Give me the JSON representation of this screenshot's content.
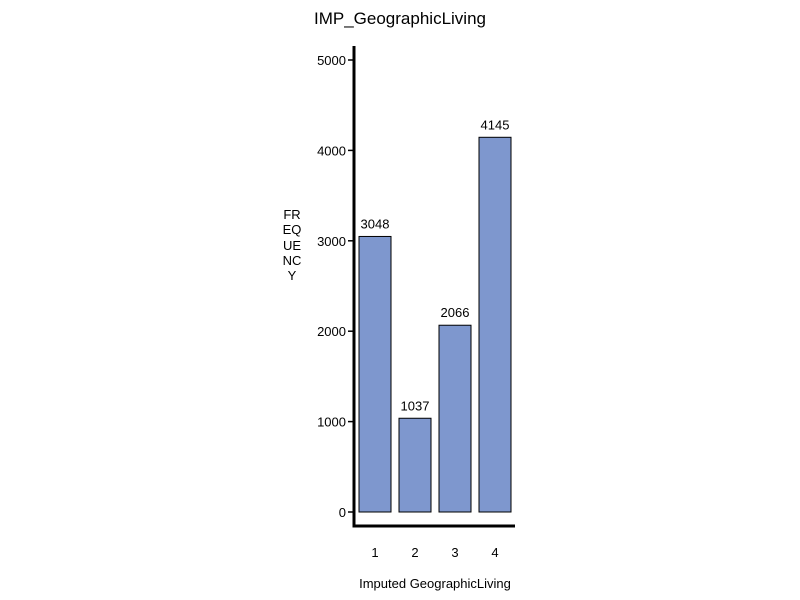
{
  "chart_data": {
    "type": "bar",
    "title": "IMP_GeographicLiving",
    "xlabel": "Imputed GeographicLiving",
    "ylabel": "FREQUENCY",
    "categories": [
      "1",
      "2",
      "3",
      "4"
    ],
    "values": [
      3048,
      1037,
      2066,
      4145
    ],
    "data_labels": [
      "3048",
      "1037",
      "2066",
      "4145"
    ],
    "ylim": [
      0,
      5000
    ],
    "yticks": [
      0,
      1000,
      2000,
      3000,
      4000,
      5000
    ],
    "ytick_labels": [
      "0",
      "1000",
      "2000",
      "3000",
      "4000",
      "5000"
    ],
    "grid": false,
    "legend": "none",
    "bar_color": "#7e97ce",
    "bar_edge_color": "#000000"
  }
}
